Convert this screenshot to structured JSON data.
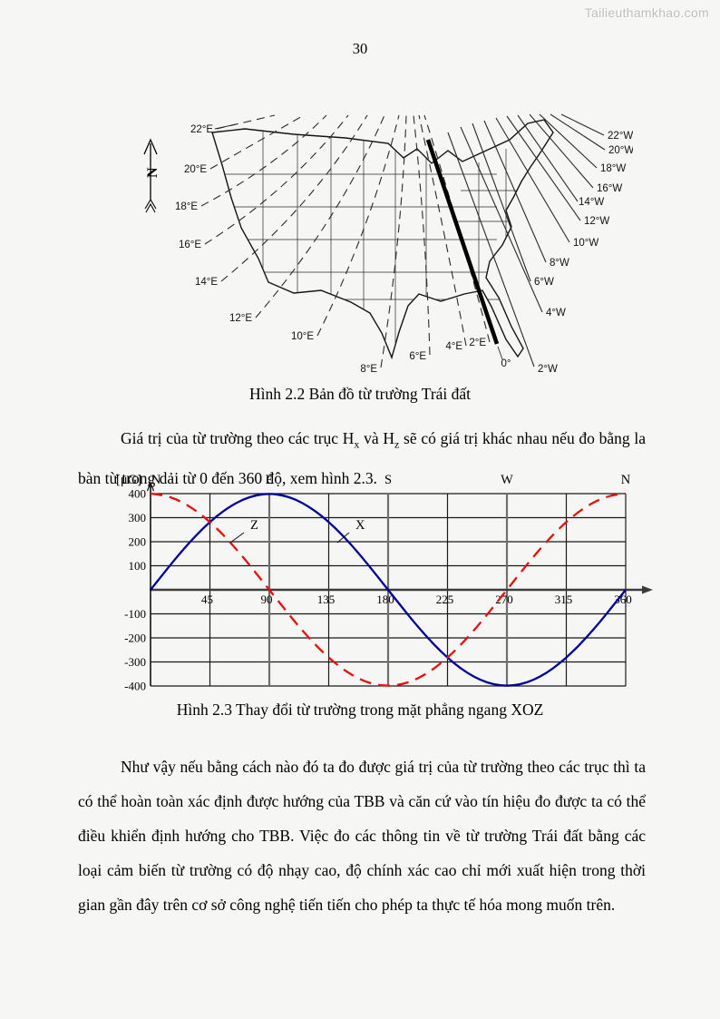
{
  "watermark": "Tailieuthamkhao.com",
  "page_number": "30",
  "figure_map": {
    "caption": "Hình 2.2 Bản đồ từ trường Trái đất",
    "north_label": "N",
    "labels_east": [
      "22°E",
      "20°E",
      "18°E",
      "16°E",
      "14°E",
      "12°E",
      "10°E",
      "8°E",
      "6°E",
      "4°E",
      "2°E"
    ],
    "label_zero": "0°",
    "labels_west": [
      "2°W",
      "4°W",
      "6°W",
      "8°W",
      "10°W",
      "12°W",
      "14°W",
      "16°W",
      "18°W",
      "20°W",
      "22°W"
    ]
  },
  "paragraph1": {
    "seg1": "Giá trị của từ trường theo các trục H",
    "sub1": "x",
    "seg2": " và H",
    "sub2": "z",
    "seg3": " sẽ có giá trị khác nhau nếu đo bằng la bàn từ trong dải từ 0 đến 360 độ, xem hình 2.3."
  },
  "figure_chart": {
    "caption": "Hình 2.3 Thay đổi từ trường trong mặt phẳng ngang XOZ"
  },
  "paragraph2": {
    "text": "Như vậy nếu bằng cách nào đó ta đo được giá trị của từ trường theo các trục thì ta có thể hoàn toàn xác định được hướng của TBB và căn cứ vào tín hiệu đo được ta có thể điều khiển định hướng cho TBB. Việc đo các thông tin về từ trường Trái đất bằng các loại cảm biến từ trường có độ nhạy cao, độ chính xác cao chỉ mới xuất hiện trong thời gian gần đây trên cơ sở công nghệ tiến tiến cho phép ta thực tế hóa mong muốn trên."
  },
  "chart_data": {
    "type": "line",
    "x_unit": "degrees",
    "xlim": [
      0,
      360
    ],
    "ylim": [
      -400,
      400
    ],
    "x_ticks": [
      45,
      90,
      135,
      180,
      225,
      270,
      315,
      360
    ],
    "y_ticks": [
      400,
      300,
      200,
      100,
      -100,
      -200,
      -300,
      -400
    ],
    "y_unit_label": "[μG]",
    "grid": true,
    "compass_labels": [
      {
        "text": "N",
        "deg": 0
      },
      {
        "text": "E",
        "deg": 90
      },
      {
        "text": "S",
        "deg": 180
      },
      {
        "text": "W",
        "deg": 270
      },
      {
        "text": "N",
        "deg": 360
      }
    ],
    "x": [
      0,
      10,
      20,
      30,
      40,
      50,
      60,
      70,
      80,
      90,
      100,
      110,
      120,
      130,
      140,
      150,
      160,
      170,
      180,
      190,
      200,
      210,
      220,
      230,
      240,
      250,
      260,
      270,
      280,
      290,
      300,
      310,
      320,
      330,
      340,
      350,
      360
    ],
    "series": [
      {
        "name": "X",
        "color": "#00009a",
        "line_style": "solid",
        "values": [
          0,
          69,
          137,
          200,
          257,
          306,
          346,
          376,
          394,
          400,
          394,
          376,
          346,
          306,
          257,
          200,
          137,
          69,
          0,
          -69,
          -137,
          -200,
          -257,
          -306,
          -346,
          -376,
          -394,
          -400,
          -394,
          -376,
          -346,
          -306,
          -257,
          -200,
          -137,
          -69,
          0
        ]
      },
      {
        "name": "Z",
        "color": "#e60f0f",
        "line_style": "dashed",
        "values": [
          400,
          394,
          376,
          346,
          306,
          257,
          200,
          137,
          69,
          0,
          -69,
          -137,
          -200,
          -257,
          -306,
          -346,
          -376,
          -394,
          -400,
          -394,
          -376,
          -346,
          -306,
          -257,
          -200,
          -137,
          -69,
          0,
          69,
          137,
          200,
          257,
          306,
          346,
          376,
          394,
          400
        ]
      }
    ],
    "annotations": [
      {
        "text": "Z",
        "series": "Z"
      },
      {
        "text": "X",
        "series": "X"
      }
    ]
  }
}
